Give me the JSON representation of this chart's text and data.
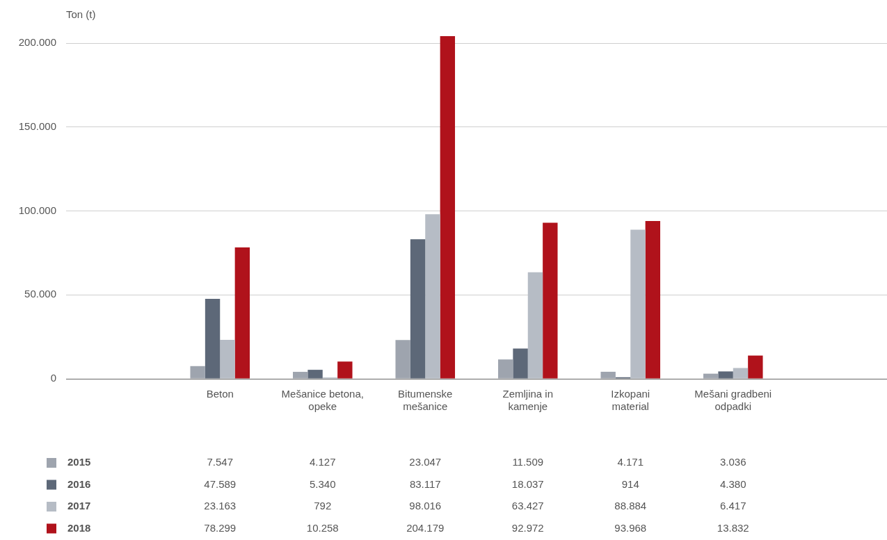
{
  "chart_data": {
    "type": "bar",
    "ylabel": "Ton (t)",
    "categories": [
      null,
      "Beton",
      "Mešanice betona, opeke",
      "Bitumenske mešanice",
      "Zemljina in kamenje",
      "Izkopani material",
      "Mešani gradbeni odpadki",
      null
    ],
    "series": [
      {
        "name": "2015",
        "color": "#9ea4ae",
        "values": [
          null,
          7547,
          4127,
          23047,
          11509,
          4171,
          3036,
          null
        ],
        "value_labels": [
          null,
          "7.547",
          "4.127",
          "23.047",
          "11.509",
          "4.171",
          "3.036",
          null
        ]
      },
      {
        "name": "2016",
        "color": "#5d6878",
        "values": [
          null,
          47589,
          5340,
          83117,
          18037,
          914,
          4380,
          null
        ],
        "value_labels": [
          null,
          "47.589",
          "5.340",
          "83.117",
          "18.037",
          "914",
          "4.380",
          null
        ]
      },
      {
        "name": "2017",
        "color": "#b6bcc5",
        "values": [
          null,
          23163,
          792,
          98016,
          63427,
          88884,
          6417,
          null
        ],
        "value_labels": [
          null,
          "23.163",
          "792",
          "98.016",
          "63.427",
          "88.884",
          "6.417",
          null
        ]
      },
      {
        "name": "2018",
        "color": "#b0121b",
        "values": [
          null,
          78299,
          10258,
          204179,
          92972,
          93968,
          13832,
          null
        ],
        "value_labels": [
          null,
          "78.299",
          "10.258",
          "204.179",
          "92.972",
          "93.968",
          "13.832",
          null
        ]
      }
    ],
    "ylim": [
      0,
      205000
    ],
    "yticks": [
      {
        "value": 0,
        "label": "0"
      },
      {
        "value": 50000,
        "label": "50.000"
      },
      {
        "value": 100000,
        "label": "100.000"
      },
      {
        "value": 150000,
        "label": "150.000"
      },
      {
        "value": 200000,
        "label": "200.000"
      }
    ],
    "grid": "y",
    "legend": "bottom"
  }
}
